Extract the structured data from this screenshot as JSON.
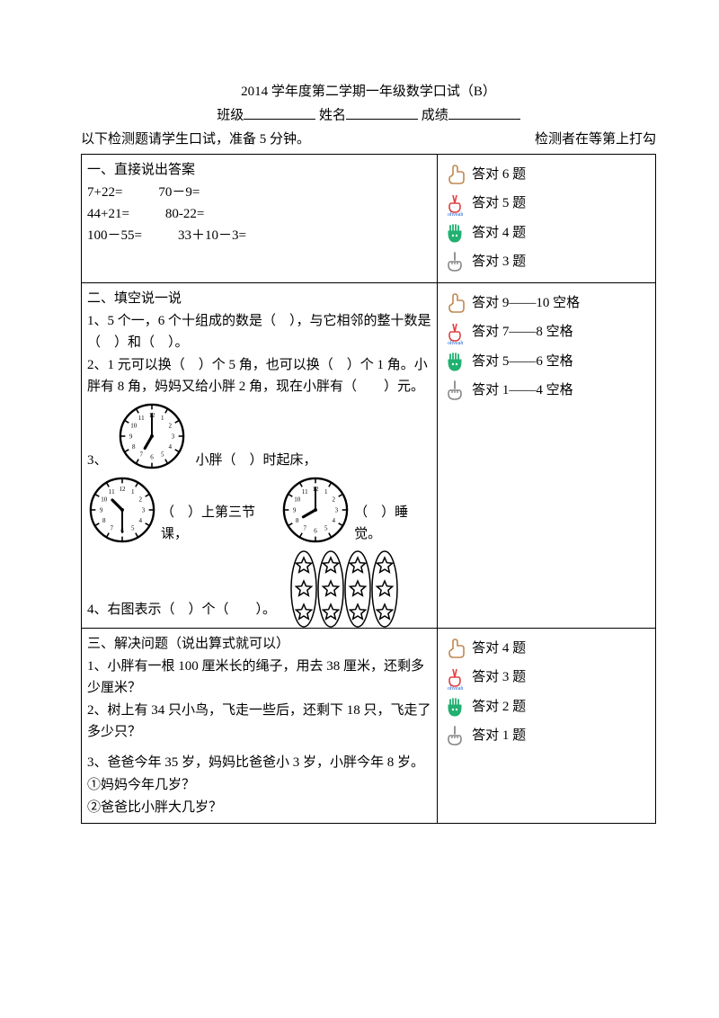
{
  "header": {
    "title": "2014 学年度第二学期一年级数学口试（B）",
    "class_label": "班级",
    "name_label": "姓名",
    "score_label": "成绩",
    "instruction_left": "以下检测题请学生口试，准备 5 分钟。",
    "instruction_right": "检测者在等第上打勾"
  },
  "section1": {
    "heading": "一、直接说出答案",
    "eq1a": "7+22=",
    "eq1b": "70－9=",
    "eq2a": "44+21=",
    "eq2b": "80-22=",
    "eq3a": "100－55=",
    "eq3b": "33＋10－3=",
    "scores": {
      "s1": "答对 6 题",
      "s2": "答对 5 题",
      "s3": "答对 4 题",
      "s4": "答对 3 题"
    }
  },
  "section2": {
    "heading": "二、填空说一说",
    "q1": "1、5 个一，6 个十组成的数是（　），与它相邻的整十数是（　）和（　）。",
    "q2": "2、1 元可以换（　）个 5 角，也可以换（　）个 1 角。小胖有 8 角，妈妈又给小胖 2 角，现在小胖有（　　）元。",
    "q3_prefix": "3、",
    "q3_mid": "小胖（　）时起床，",
    "q3_b": "（　）上第三节课，",
    "q3_c": "（　）睡觉。",
    "q4": "4、右图表示（　）个（　　）。",
    "scores": {
      "s1": "答对 9——10 空格",
      "s2": "答对 7——8 空格",
      "s3": "答对 5——6 空格",
      "s4": "答对 1——4 空格"
    },
    "clocks": {
      "c1": {
        "hour": 7,
        "minute": 0
      },
      "c2": {
        "hour": 10,
        "minute": 30
      },
      "c3": {
        "hour": 8,
        "minute": 0
      }
    },
    "stars_grid": {
      "cols": 4,
      "rows": 3
    }
  },
  "section3": {
    "heading": "三、解决问题（说出算式就可以）",
    "q1": "1、小胖有一根 100 厘米长的绳子，用去 38 厘米，还剩多少厘米？",
    "q2": "2、树上有 34 只小鸟，飞走一些后，还剩下 18 只，飞走了多少只？",
    "q3": "3、爸爸今年 35 岁，妈妈比爸爸小 3 岁，小胖今年 8 岁。",
    "q3a": "①妈妈今年几岁？",
    "q3b": "②爸爸比小胖大几岁？",
    "scores": {
      "s1": "答对 4 题",
      "s2": "答对 3 题",
      "s3": "答对 2 题",
      "s4": "答对 1 题"
    }
  },
  "colors": {
    "thumb": "#c08850",
    "peace": "#e04040",
    "ohyeah": "#2060d0",
    "palm": "#20b070",
    "ok": "#d0b000",
    "point": "#888888"
  }
}
